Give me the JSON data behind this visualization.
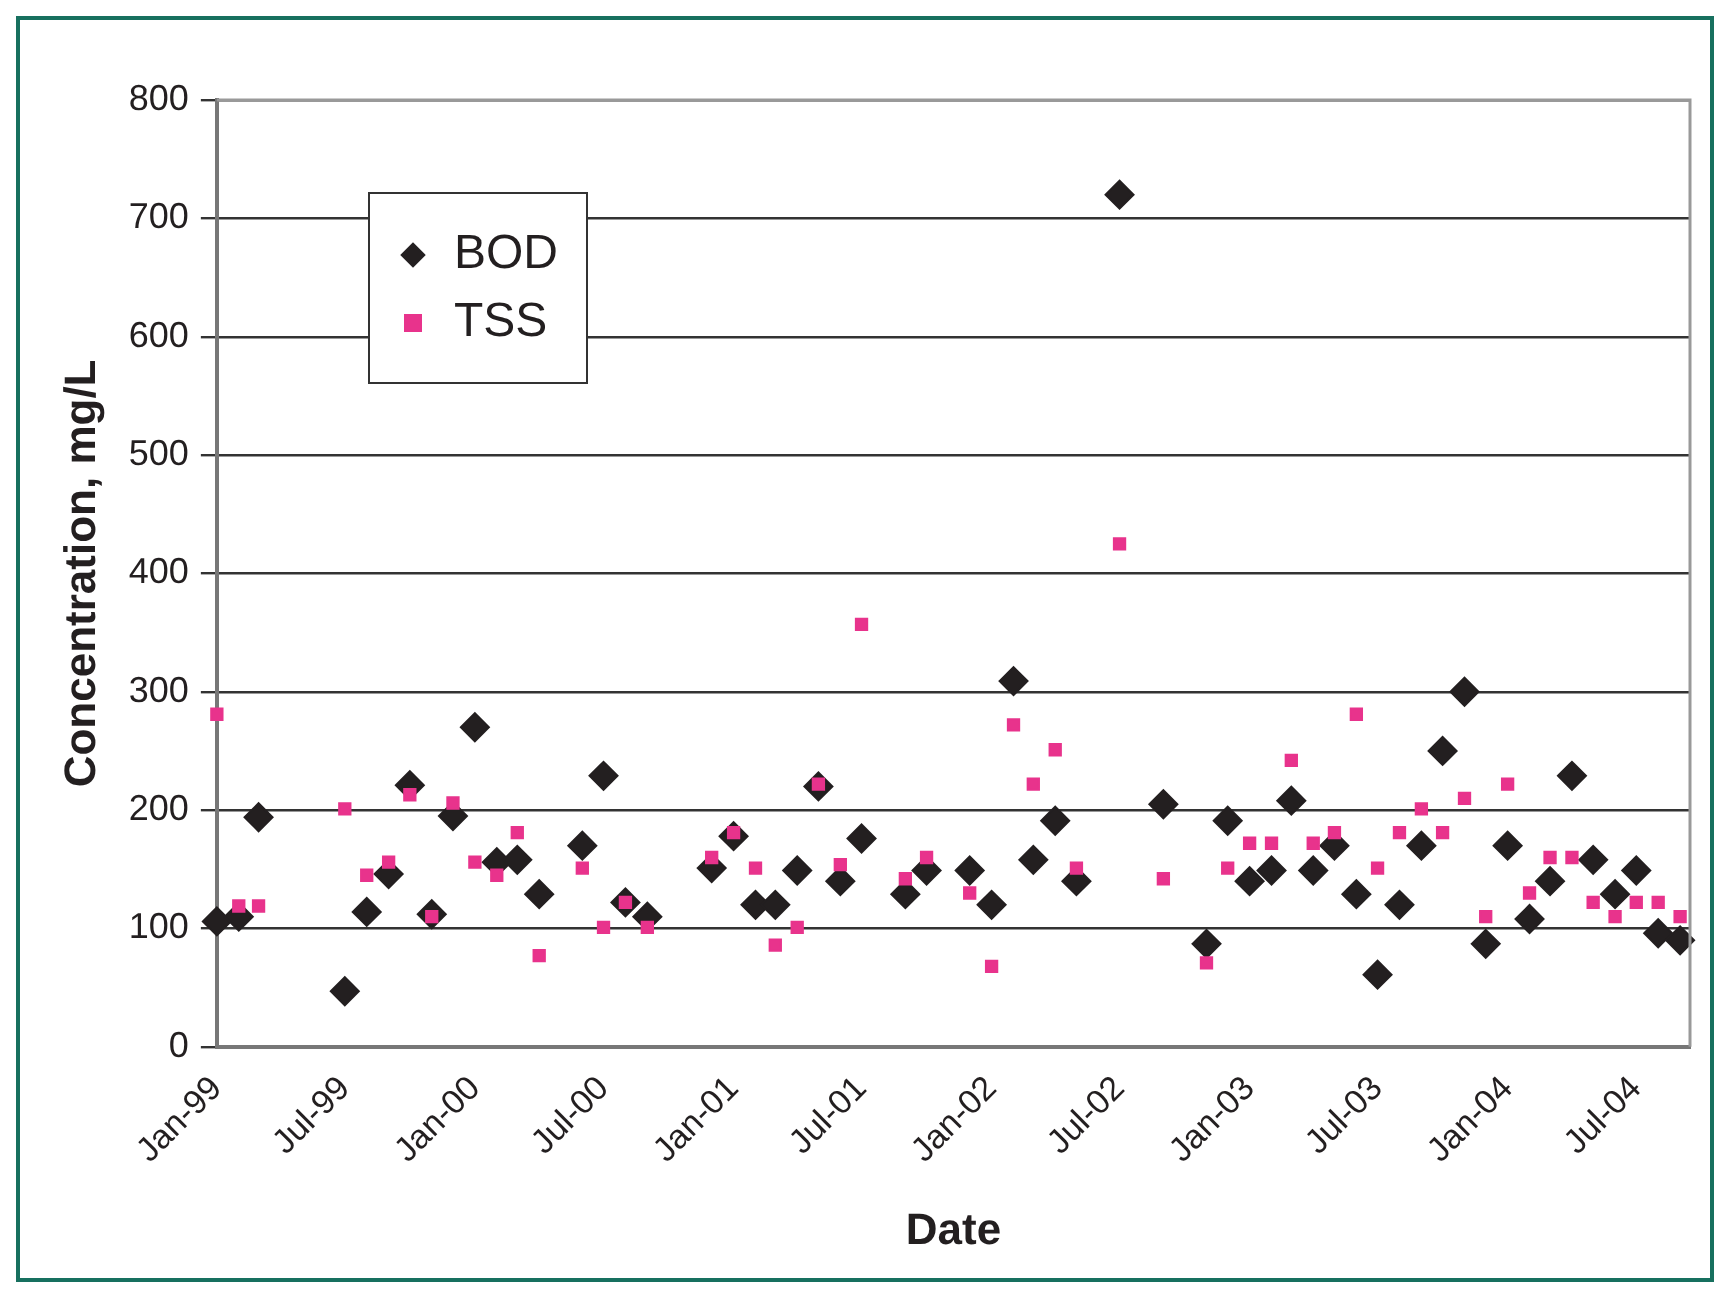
{
  "chart_data": {
    "type": "scatter",
    "xlabel": "Date",
    "ylabel": "Concentration, mg/L",
    "x": [
      "1999-01",
      "1999-02",
      "1999-03",
      "1999-07",
      "1999-08",
      "1999-09",
      "1999-10",
      "1999-11",
      "1999-12",
      "2000-01",
      "2000-02",
      "2000-03",
      "2000-04",
      "2000-06",
      "2000-07",
      "2000-08",
      "2000-09",
      "2000-12",
      "2001-01",
      "2001-02",
      "2001-03",
      "2001-04",
      "2001-05",
      "2001-06",
      "2001-07",
      "2001-09",
      "2001-10",
      "2001-12",
      "2002-01",
      "2002-02",
      "2002-03",
      "2002-04",
      "2002-05",
      "2002-07",
      "2002-09",
      "2002-11",
      "2002-12",
      "2003-01",
      "2003-02",
      "2003-03",
      "2003-04",
      "2003-05",
      "2003-06",
      "2003-07",
      "2003-08",
      "2003-09",
      "2003-10",
      "2003-11",
      "2003-12",
      "2004-01",
      "2004-02",
      "2004-03",
      "2004-04",
      "2004-05",
      "2004-06",
      "2004-07",
      "2004-08",
      "2004-09"
    ],
    "series": [
      {
        "name": "BOD",
        "color": "#231f20",
        "marker": "diamond",
        "values": [
          106,
          110,
          194,
          47,
          114,
          146,
          221,
          112,
          195,
          270,
          156,
          158,
          129,
          170,
          229,
          122,
          110,
          151,
          178,
          120,
          120,
          149,
          220,
          140,
          176,
          129,
          149,
          149,
          120,
          309,
          158,
          191,
          140,
          720,
          205,
          87,
          191,
          140,
          149,
          208,
          149,
          170,
          129,
          61,
          120,
          170,
          250,
          300,
          87,
          170,
          108,
          140,
          229,
          158,
          129,
          149,
          96,
          90
        ]
      },
      {
        "name": "TSS",
        "color": "#e8338c",
        "marker": "square",
        "values": [
          281,
          119,
          119,
          201,
          145,
          156,
          213,
          110,
          206,
          156,
          145,
          181,
          77,
          151,
          101,
          122,
          101,
          160,
          181,
          151,
          86,
          101,
          222,
          154,
          357,
          142,
          160,
          130,
          68,
          272,
          222,
          251,
          151,
          425,
          142,
          71,
          151,
          172,
          172,
          242,
          172,
          181,
          281,
          151,
          181,
          201,
          181,
          210,
          110,
          222,
          130,
          160,
          160,
          122,
          110,
          122,
          122,
          110
        ]
      }
    ],
    "xlim": [
      "1999-01-01",
      "2004-09-15"
    ],
    "xticks": [
      {
        "value": "1999-01-01",
        "label": "Jan-99"
      },
      {
        "value": "1999-07-01",
        "label": "Jul-99"
      },
      {
        "value": "2000-01-01",
        "label": "Jan-00"
      },
      {
        "value": "2000-07-01",
        "label": "Jul-00"
      },
      {
        "value": "2001-01-01",
        "label": "Jan-01"
      },
      {
        "value": "2001-07-01",
        "label": "Jul-01"
      },
      {
        "value": "2002-01-01",
        "label": "Jan-02"
      },
      {
        "value": "2002-07-01",
        "label": "Jul-02"
      },
      {
        "value": "2003-01-01",
        "label": "Jan-03"
      },
      {
        "value": "2003-07-01",
        "label": "Jul-03"
      },
      {
        "value": "2004-01-01",
        "label": "Jan-04"
      },
      {
        "value": "2004-07-01",
        "label": "Jul-04"
      }
    ],
    "ylim": [
      0,
      800
    ],
    "yticks": [
      0,
      100,
      200,
      300,
      400,
      500,
      600,
      700,
      800
    ],
    "grid": "y",
    "legend": "top left"
  }
}
